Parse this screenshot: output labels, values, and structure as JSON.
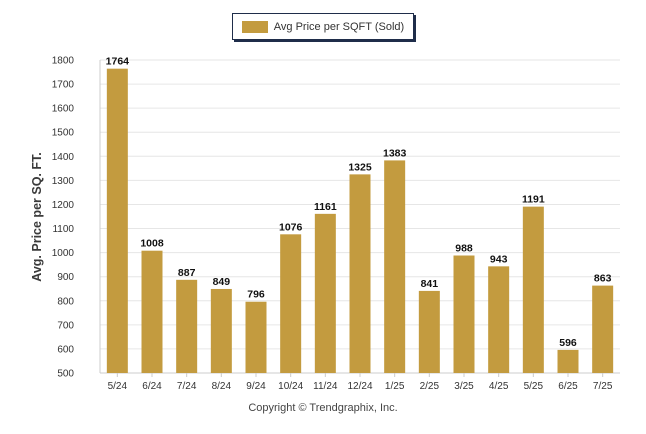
{
  "colors": {
    "bar": "#C39B3F",
    "grid": "#e6e6e6",
    "axis": "#cccccc",
    "text": "#333333"
  },
  "legend": {
    "label": "Avg Price per SQFT (Sold)"
  },
  "copyright": "Copyright © Trendgraphix, Inc.",
  "chart_data": {
    "type": "bar",
    "categories": [
      "5/24",
      "6/24",
      "7/24",
      "8/24",
      "9/24",
      "10/24",
      "11/24",
      "12/24",
      "1/25",
      "2/25",
      "3/25",
      "4/25",
      "5/25",
      "6/25",
      "7/25"
    ],
    "series": [
      {
        "name": "Avg Price per SQFT (Sold)",
        "values": [
          1764,
          1008,
          887,
          849,
          796,
          1076,
          1161,
          1325,
          1383,
          841,
          988,
          943,
          1191,
          596,
          863
        ]
      }
    ],
    "ylabel": "Avg. Price per SQ. FT.",
    "xlabel": "",
    "ylim": [
      500,
      1800
    ],
    "yticks": [
      500,
      600,
      700,
      800,
      900,
      1000,
      1100,
      1200,
      1300,
      1400,
      1500,
      1600,
      1700,
      1800
    ],
    "grid": true,
    "legend_position": "top-center",
    "data_labels": true
  }
}
